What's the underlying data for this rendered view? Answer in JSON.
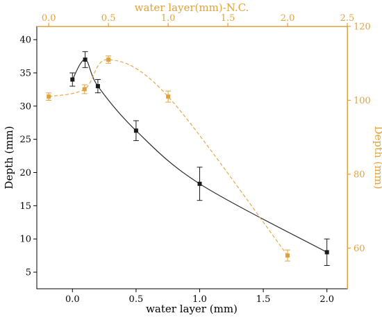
{
  "chart_data": {
    "type": "line",
    "bottom_axis": {
      "label": "water layer (mm)",
      "range": [
        -0.28,
        2.16
      ],
      "ticks": [
        0.0,
        0.5,
        1.0,
        1.5,
        2.0
      ],
      "tick_labels": [
        "0.0",
        "0.5",
        "1.0",
        "1.5",
        "2.0"
      ]
    },
    "top_axis": {
      "label": "water layer(mm)-N.C.",
      "range": [
        -0.1,
        2.5
      ],
      "ticks": [
        0.0,
        0.5,
        1.0,
        1.5,
        2.0,
        2.5
      ],
      "tick_labels": [
        "0.0",
        "0.5",
        "1.0",
        "1.5",
        "2.0",
        "2.5"
      ]
    },
    "left_axis": {
      "label": "Depth (mm)",
      "range": [
        2.5,
        42
      ],
      "ticks": [
        5,
        10,
        15,
        20,
        25,
        30,
        35,
        40
      ],
      "tick_labels": [
        "5",
        "10",
        "15",
        "20",
        "25",
        "30",
        "35",
        "40"
      ]
    },
    "right_axis": {
      "label": "Depth (mm)",
      "range": [
        49,
        120
      ],
      "ticks": [
        60,
        80,
        100,
        120
      ],
      "tick_labels": [
        "60",
        "80",
        "100",
        "120"
      ]
    },
    "series": [
      {
        "color": "#1a1a1a",
        "x_axis": "bottom",
        "y_axis": "left",
        "x": [
          0.0,
          0.1,
          0.2,
          0.5,
          1.0,
          2.0
        ],
        "y": [
          34.0,
          37.0,
          33.0,
          26.3,
          18.3,
          8.0
        ],
        "err": [
          1.0,
          1.2,
          1.0,
          1.5,
          2.5,
          2.0
        ]
      },
      {
        "color": "#e3a13c",
        "x_axis": "top",
        "y_axis": "right",
        "x": [
          0.0,
          0.3,
          0.5,
          1.0,
          2.0
        ],
        "y": [
          101.0,
          103.0,
          111.0,
          101.0,
          58.0
        ],
        "err": [
          1.0,
          1.2,
          1.0,
          1.5,
          1.5
        ]
      }
    ]
  }
}
